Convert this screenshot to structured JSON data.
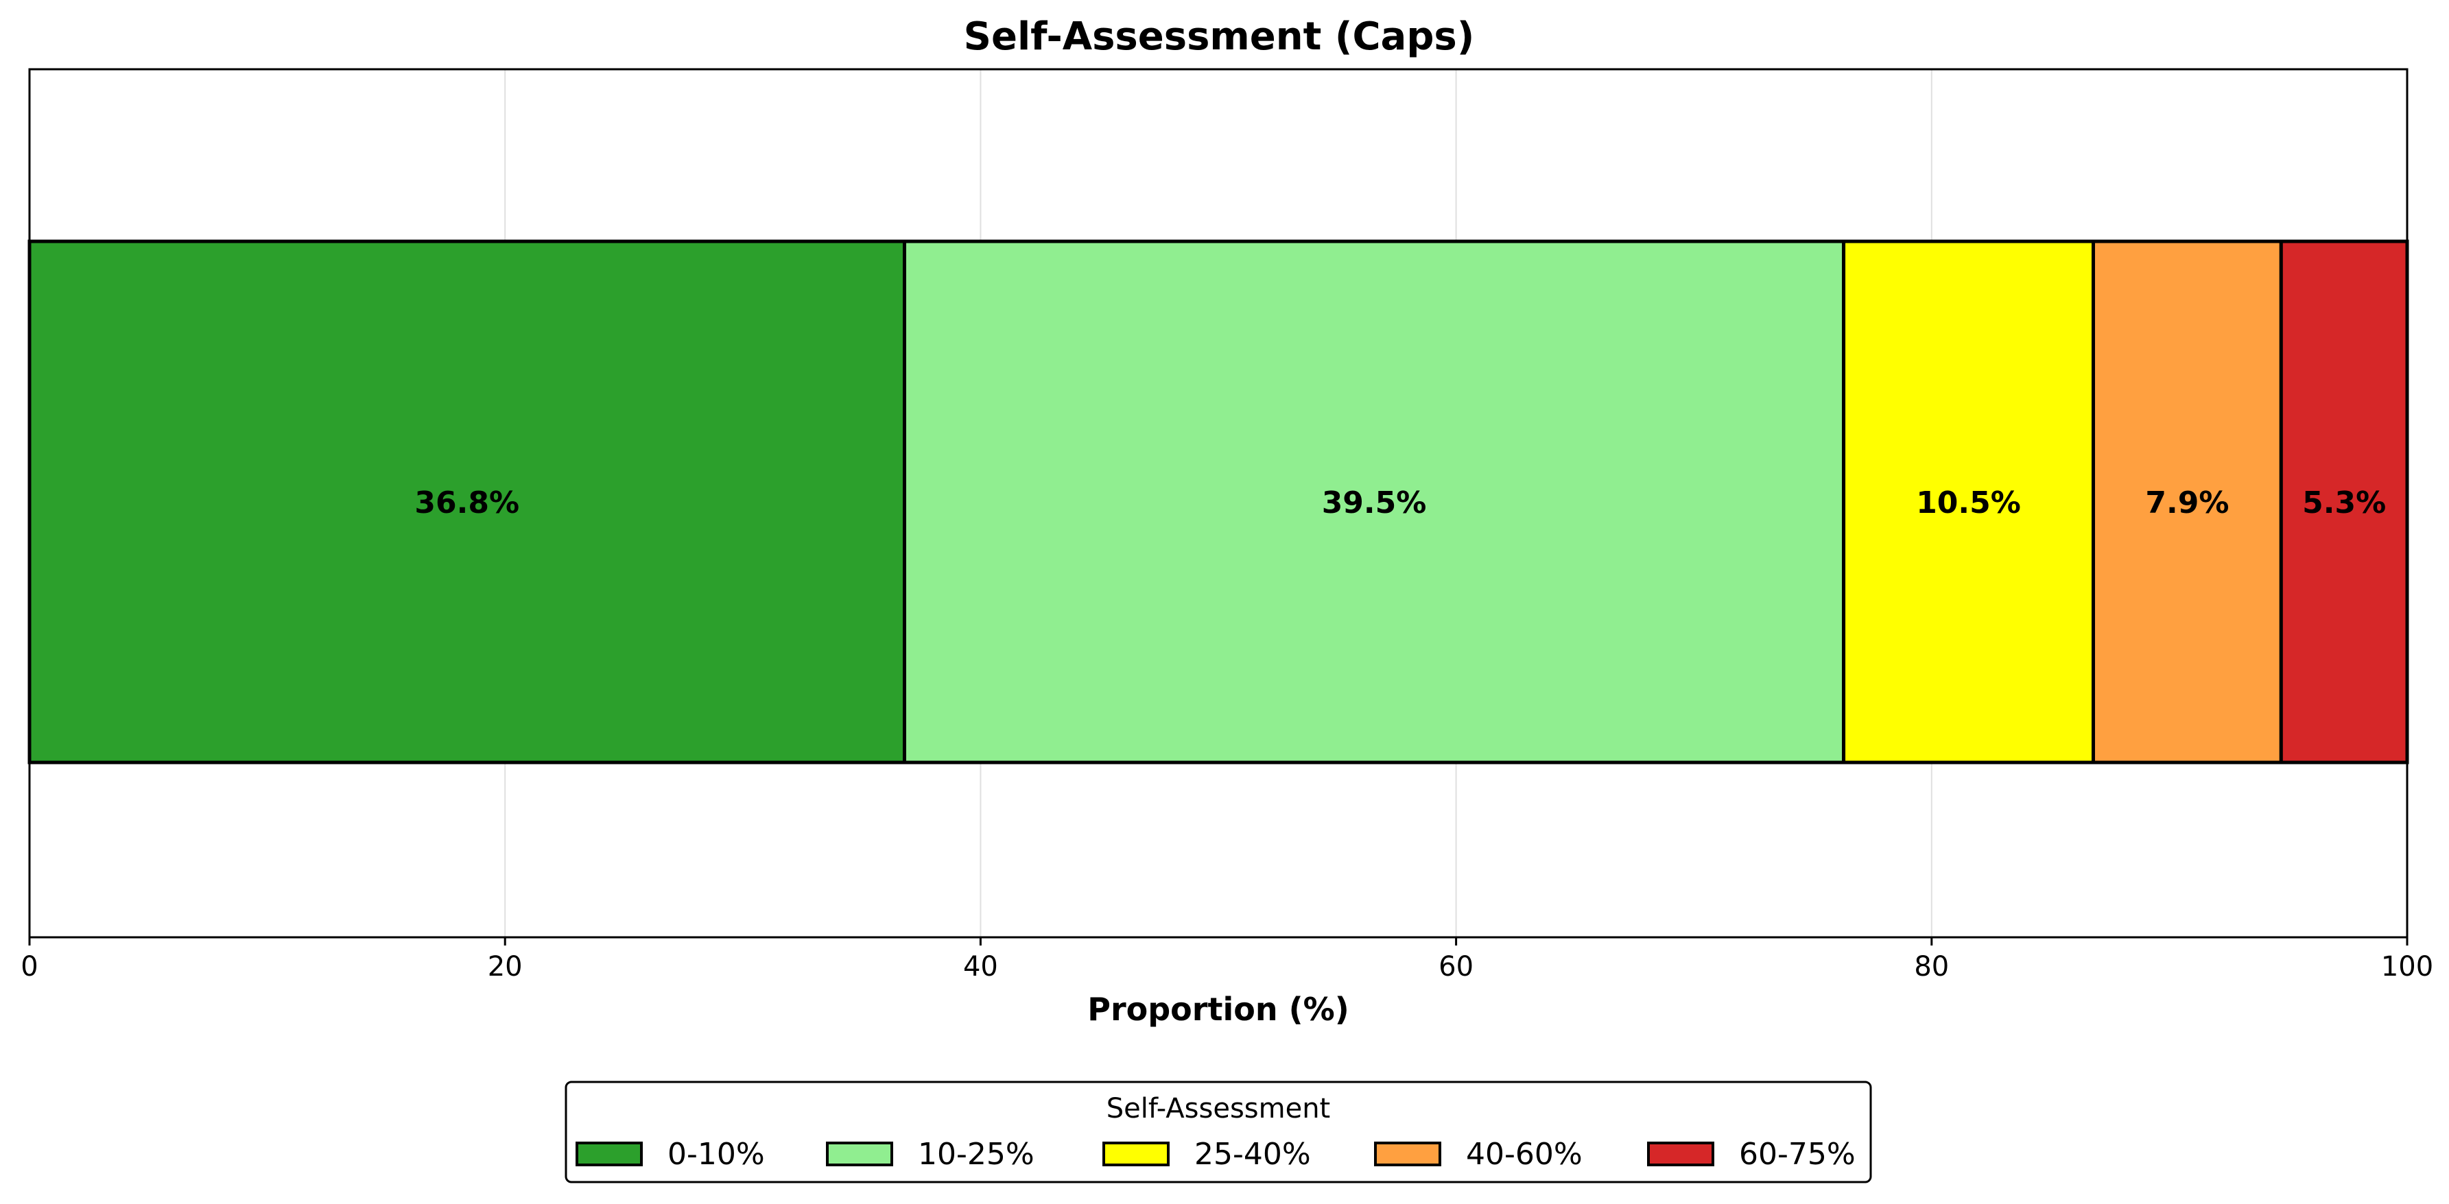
{
  "chart_data": {
    "type": "bar",
    "orientation": "horizontal",
    "stacked": true,
    "title": "Self-Assessment (Caps)",
    "xlabel": "Proportion (%)",
    "ylabel": "",
    "xlim": [
      0,
      100
    ],
    "x_ticks": [
      0,
      20,
      40,
      60,
      80,
      100
    ],
    "grid": "vertical",
    "legend_title": "Self-Assessment",
    "legend_placement": "bottom-center",
    "series": [
      {
        "name": "0-10%",
        "value": 36.8,
        "label": "36.8%",
        "color": "#2ca02c"
      },
      {
        "name": "10-25%",
        "value": 39.5,
        "label": "39.5%",
        "color": "#90ee90"
      },
      {
        "name": "25-40%",
        "value": 10.5,
        "label": "10.5%",
        "color": "#ffff00"
      },
      {
        "name": "40-60%",
        "value": 7.9,
        "label": "7.9%",
        "color": "#ffa040"
      },
      {
        "name": "60-75%",
        "value": 5.3,
        "label": "5.3%",
        "color": "#d62728"
      }
    ]
  }
}
